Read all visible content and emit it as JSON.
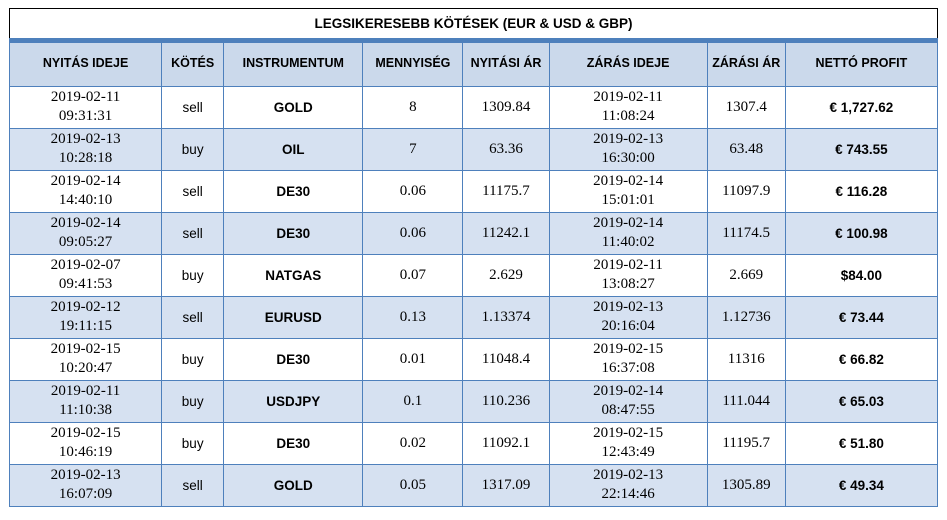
{
  "title": "LEGSIKERESEBB KÖTÉSEK (EUR & USD & GBP)",
  "table": {
    "columns": [
      {
        "key": "open_time",
        "label": "NYITÁS IDEJE"
      },
      {
        "key": "side",
        "label": "KÖTÉS"
      },
      {
        "key": "instrument",
        "label": "INSTRUMENTUM"
      },
      {
        "key": "quantity",
        "label": "MENNYISÉG"
      },
      {
        "key": "open_price",
        "label": "NYITÁSI ÁR"
      },
      {
        "key": "close_time",
        "label": "ZÁRÁS IDEJE"
      },
      {
        "key": "close_price",
        "label": "ZÁRÁSI ÁR"
      },
      {
        "key": "profit",
        "label": "NETTÓ PROFIT"
      }
    ],
    "rows": [
      {
        "open_time": "2019-02-11\n09:31:31",
        "side": "sell",
        "instrument": "GOLD",
        "quantity": "8",
        "open_price": "1309.84",
        "close_time": "2019-02-11\n11:08:24",
        "close_price": "1307.4",
        "profit": "€ 1,727.62"
      },
      {
        "open_time": "2019-02-13\n10:28:18",
        "side": "buy",
        "instrument": "OIL",
        "quantity": "7",
        "open_price": "63.36",
        "close_time": "2019-02-13\n16:30:00",
        "close_price": "63.48",
        "profit": "€ 743.55"
      },
      {
        "open_time": "2019-02-14\n14:40:10",
        "side": "sell",
        "instrument": "DE30",
        "quantity": "0.06",
        "open_price": "11175.7",
        "close_time": "2019-02-14\n15:01:01",
        "close_price": "11097.9",
        "profit": "€ 116.28"
      },
      {
        "open_time": "2019-02-14\n09:05:27",
        "side": "sell",
        "instrument": "DE30",
        "quantity": "0.06",
        "open_price": "11242.1",
        "close_time": "2019-02-14\n11:40:02",
        "close_price": "11174.5",
        "profit": "€ 100.98"
      },
      {
        "open_time": "2019-02-07\n09:41:53",
        "side": "buy",
        "instrument": "NATGAS",
        "quantity": "0.07",
        "open_price": "2.629",
        "close_time": "2019-02-11\n13:08:27",
        "close_price": "2.669",
        "profit": "$84.00"
      },
      {
        "open_time": "2019-02-12\n19:11:15",
        "side": "sell",
        "instrument": "EURUSD",
        "quantity": "0.13",
        "open_price": "1.13374",
        "close_time": "2019-02-13\n20:16:04",
        "close_price": "1.12736",
        "profit": "€ 73.44"
      },
      {
        "open_time": "2019-02-15\n10:20:47",
        "side": "buy",
        "instrument": "DE30",
        "quantity": "0.01",
        "open_price": "11048.4",
        "close_time": "2019-02-15\n16:37:08",
        "close_price": "11316",
        "profit": "€ 66.82"
      },
      {
        "open_time": "2019-02-11\n11:10:38",
        "side": "buy",
        "instrument": "USDJPY",
        "quantity": "0.1",
        "open_price": "110.236",
        "close_time": "2019-02-14\n08:47:55",
        "close_price": "111.044",
        "profit": "€ 65.03"
      },
      {
        "open_time": "2019-02-15\n10:46:19",
        "side": "buy",
        "instrument": "DE30",
        "quantity": "0.02",
        "open_price": "11092.1",
        "close_time": "2019-02-15\n12:43:49",
        "close_price": "11195.7",
        "profit": "€ 51.80"
      },
      {
        "open_time": "2019-02-13\n16:07:09",
        "side": "sell",
        "instrument": "GOLD",
        "quantity": "0.05",
        "open_price": "1317.09",
        "close_time": "2019-02-13\n22:14:46",
        "close_price": "1305.89",
        "profit": "€ 49.34"
      }
    ]
  },
  "colors": {
    "border_blue": "#4E80BC",
    "header_bg": "#CBD9EB",
    "alt_row_bg": "#D6E1F1",
    "title_border": "#000000"
  }
}
